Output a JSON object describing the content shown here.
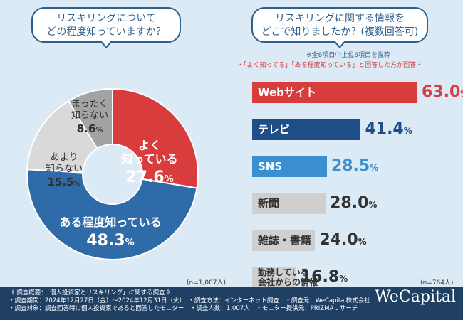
{
  "left_question": {
    "line1": "リスキリングについて",
    "line2": "どの程度知っていますか？"
  },
  "right_question": {
    "line1": "リスキリングに関する情報を",
    "line2": "どこで知りましたか？(複数回答可)"
  },
  "right_note1": "※全8項目中上位6項目を抜粋",
  "right_note2": "・「よく知ってる」「ある程度知っている」と回答した方が回答・",
  "left_n": "(n=1,007人)",
  "right_n": "(n=764人)",
  "chart_data": [
    {
      "type": "pie",
      "title": "リスキリングについてどの程度知っていますか？",
      "slices": [
        {
          "label_lines": [
            "よく",
            "知っている"
          ],
          "value": 27.6,
          "value_text": "27.6",
          "color": "#d93c3c"
        },
        {
          "label_lines": [
            "ある程度知っている"
          ],
          "value": 48.3,
          "value_text": "48.3",
          "color": "#2f6ba8"
        },
        {
          "label_lines": [
            "あまり",
            "知らない"
          ],
          "value": 15.5,
          "value_text": "15.5",
          "color": "#d9d9d9"
        },
        {
          "label_lines": [
            "まったく",
            "知らない"
          ],
          "value": 8.6,
          "value_text": "8.6",
          "color": "#a3a3a3"
        }
      ],
      "unit": "%"
    },
    {
      "type": "bar",
      "title": "リスキリングに関する情報をどこで知りましたか？(複数回答可)",
      "categories": [
        "Webサイト",
        "テレビ",
        "SNS",
        "新聞",
        "雑誌・書籍",
        "勤務している会社からの情報"
      ],
      "label_lines": [
        [
          "Webサイト"
        ],
        [
          "テレビ"
        ],
        [
          "SNS"
        ],
        [
          "新聞"
        ],
        [
          "雑誌・書籍"
        ],
        [
          "勤務している",
          "会社からの情報"
        ]
      ],
      "values": [
        63.0,
        41.4,
        28.5,
        28.0,
        24.0,
        16.8
      ],
      "value_text": [
        "63.0",
        "41.4",
        "28.5",
        "28.0",
        "24.0",
        "16.8"
      ],
      "colors": [
        "#d93c3c",
        "#1f4f86",
        "#3a8fd0",
        "#cfcfcf",
        "#cfcfcf",
        "#cfcfcf"
      ],
      "unit": "%",
      "xlim": [
        0,
        63
      ]
    }
  ],
  "footer": {
    "lines": [
      "《 調査概要：「個人投資家とリスキリング」に関する調査 》",
      "・調査期間：2024年12月27日（金）～2024年12月31日（火）　・調査方法：インターネット調査　・調査元：WeCapital株式会社",
      "・調査対象：調査回答時に個人投資家であると回答したモニター　・調査人数：1,007人　・モニター提供元：PRIZMAリサーチ"
    ],
    "brand": "WeCapital"
  }
}
